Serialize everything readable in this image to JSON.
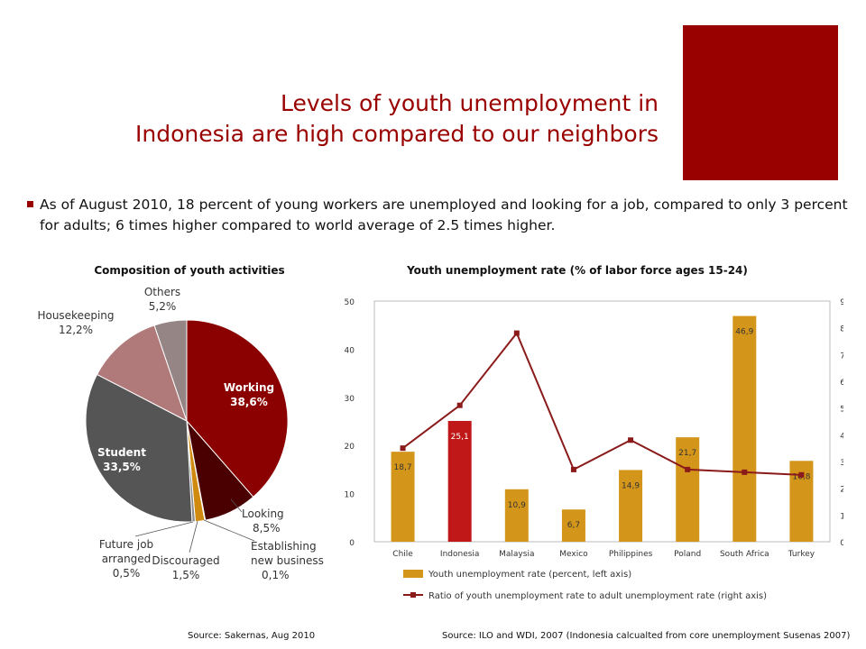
{
  "slide": {
    "title_line1": "Levels of youth unemployment in",
    "title_line2": "Indonesia are high compared to our neighbors",
    "bullet": "As of August 2010, 18 percent of young workers are unemployed and looking for a job, compared to only 3 percent for adults; 6 times higher compared to world average of 2.5 times higher.",
    "accent_color": "#990000",
    "bullet_icon": "square-bullet-icon"
  },
  "chart_data": [
    {
      "type": "pie",
      "title": "Composition of youth activities",
      "source": "Source: Sakernas, Aug 2010",
      "slices": [
        {
          "name": "Working",
          "value": 38.6,
          "label": "38,6%",
          "color": "#8B0000"
        },
        {
          "name": "Looking",
          "value": 8.5,
          "label": "8,5%",
          "color": "#4a0000"
        },
        {
          "name": "Establishing new business",
          "value": 0.1,
          "label": "0,1%",
          "color": "#7a5a00"
        },
        {
          "name": "Discouraged",
          "value": 1.5,
          "label": "1,5%",
          "color": "#d08a10"
        },
        {
          "name": "Future job arranged",
          "value": 0.5,
          "label": "0,5%",
          "color": "#8a8a8a"
        },
        {
          "name": "Student",
          "value": 33.5,
          "label": "33,5%",
          "color": "#555555"
        },
        {
          "name": "Housekeeping",
          "value": 12.2,
          "label": "12,2%",
          "color": "#b07a7a"
        },
        {
          "name": "Others",
          "value": 5.2,
          "label": "5,2%",
          "color": "#958585"
        }
      ]
    },
    {
      "type": "bar",
      "title": "Youth unemployment rate (% of labor force ages 15-24)",
      "source": "Source: ILO and WDI, 2007 (Indonesia calcualted from core unemployment Susenas 2007)",
      "categories": [
        "Chile",
        "Indonesia",
        "Malaysia",
        "Mexico",
        "Philippines",
        "Poland",
        "South Africa",
        "Turkey"
      ],
      "ylim_left": [
        0,
        50
      ],
      "yticks_left": [
        "0",
        "10",
        "20",
        "30",
        "40",
        "50"
      ],
      "ylim_right": [
        0,
        9
      ],
      "yticks_right": [
        "0",
        "1",
        "2",
        "3",
        "4",
        "5",
        "6",
        "7",
        "8",
        "9"
      ],
      "series": [
        {
          "name": "Youth unemployment rate (percent, left axis)",
          "axis": "left",
          "values": [
            18.7,
            25.1,
            10.9,
            6.7,
            14.9,
            21.7,
            46.9,
            16.8
          ],
          "labels": [
            "18,7",
            "25,1",
            "10,9",
            "6,7",
            "14,9",
            "21,7",
            "46,9",
            "16,8"
          ],
          "color": "#D4961A",
          "highlight_color": "#C01818"
        },
        {
          "name": "Ratio of youth unemployment rate to adult unemployment rate (right axis)",
          "axis": "right",
          "type": "line",
          "values": [
            3.5,
            5.1,
            7.8,
            2.7,
            3.8,
            2.7,
            2.6,
            2.5
          ],
          "color": "#8B1A1A"
        }
      ],
      "legend_position": "bottom"
    }
  ]
}
